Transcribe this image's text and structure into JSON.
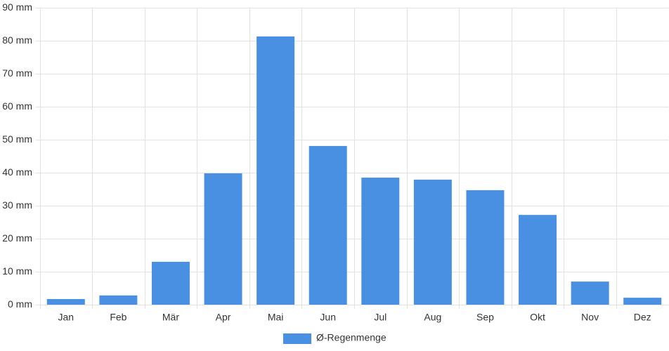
{
  "chart_data": {
    "type": "bar",
    "categories": [
      "Jan",
      "Feb",
      "Mär",
      "Apr",
      "Mai",
      "Jun",
      "Jul",
      "Aug",
      "Sep",
      "Okt",
      "Nov",
      "Dez"
    ],
    "series": [
      {
        "name": "Ø-Regenmenge",
        "color": "#4a90e2",
        "values": [
          1.7,
          2.8,
          13.0,
          39.8,
          81.3,
          48.1,
          38.5,
          37.9,
          34.7,
          27.2,
          7.0,
          2.1
        ]
      }
    ],
    "ylim": [
      0,
      90
    ],
    "yticks": [
      {
        "value": 0,
        "label": "0 mm"
      },
      {
        "value": 10,
        "label": "10 mm"
      },
      {
        "value": 20,
        "label": "20 mm"
      },
      {
        "value": 30,
        "label": "30 mm"
      },
      {
        "value": 40,
        "label": "40 mm"
      },
      {
        "value": 50,
        "label": "50 mm"
      },
      {
        "value": 60,
        "label": "60 mm"
      },
      {
        "value": 70,
        "label": "70 mm"
      },
      {
        "value": 80,
        "label": "80 mm"
      },
      {
        "value": 90,
        "label": "90 mm"
      }
    ],
    "grid": true
  }
}
